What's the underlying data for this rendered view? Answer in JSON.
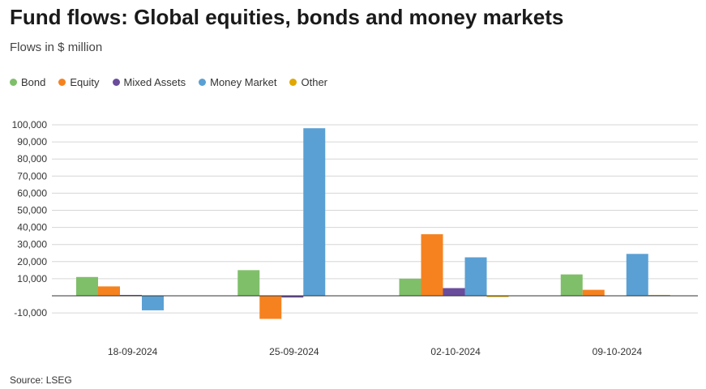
{
  "header": {
    "title": "Fund flows: Global equities, bonds and money markets",
    "subtitle": "Flows in $ million"
  },
  "footer": {
    "source": "Source: LSEG"
  },
  "chart_data": {
    "type": "bar",
    "title": "Fund flows: Global equities, bonds and money markets",
    "subtitle": "Flows in $ million",
    "xlabel": "",
    "ylabel": "",
    "categories": [
      "18-09-2024",
      "25-09-2024",
      "02-10-2024",
      "09-10-2024"
    ],
    "ylim": [
      -15000,
      100000
    ],
    "yticks": [
      -10000,
      10000,
      20000,
      30000,
      40000,
      50000,
      60000,
      70000,
      80000,
      90000,
      100000
    ],
    "ytick_labels": [
      "-10,000",
      "10,000",
      "20,000",
      "30,000",
      "40,000",
      "50,000",
      "60,000",
      "70,000",
      "80,000",
      "90,000",
      "100,000"
    ],
    "grid": true,
    "legend_position": "top-left",
    "series": [
      {
        "name": "Bond",
        "color": "#7fbf6a",
        "values": [
          11000,
          15000,
          10000,
          12500
        ]
      },
      {
        "name": "Equity",
        "color": "#f5821f",
        "values": [
          5500,
          -13500,
          36000,
          3500
        ]
      },
      {
        "name": "Mixed Assets",
        "color": "#6a4c9c",
        "values": [
          500,
          -1000,
          4500,
          0
        ]
      },
      {
        "name": "Money Market",
        "color": "#5aa0d4",
        "values": [
          -8500,
          98000,
          22500,
          24500
        ]
      },
      {
        "name": "Other",
        "color": "#e0a800",
        "values": [
          0,
          0,
          -500,
          500
        ]
      }
    ]
  }
}
